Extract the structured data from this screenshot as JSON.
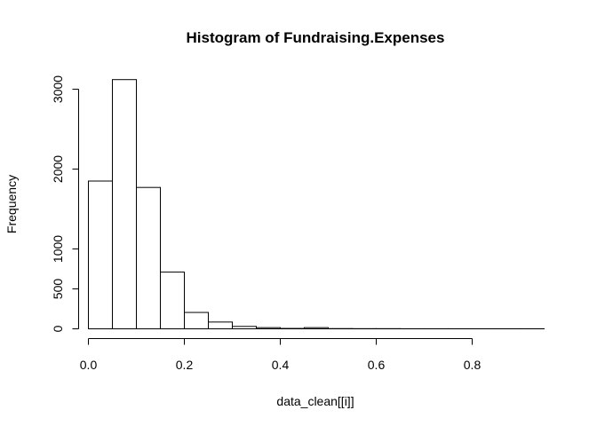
{
  "chart_data": {
    "type": "bar",
    "title": "Histogram of Fundraising.Expenses",
    "xlabel": "data_clean[[i]]",
    "ylabel": "Frequency",
    "bin_width": 0.05,
    "bins": [
      {
        "x0": 0.0,
        "x1": 0.05,
        "count": 1850
      },
      {
        "x0": 0.05,
        "x1": 0.1,
        "count": 3120
      },
      {
        "x0": 0.1,
        "x1": 0.15,
        "count": 1770
      },
      {
        "x0": 0.15,
        "x1": 0.2,
        "count": 710
      },
      {
        "x0": 0.2,
        "x1": 0.25,
        "count": 205
      },
      {
        "x0": 0.25,
        "x1": 0.3,
        "count": 85
      },
      {
        "x0": 0.3,
        "x1": 0.35,
        "count": 30
      },
      {
        "x0": 0.35,
        "x1": 0.4,
        "count": 15
      },
      {
        "x0": 0.4,
        "x1": 0.45,
        "count": 5
      },
      {
        "x0": 0.45,
        "x1": 0.5,
        "count": 15
      },
      {
        "x0": 0.5,
        "x1": 0.55,
        "count": 3
      },
      {
        "x0": 0.55,
        "x1": 0.6,
        "count": 2
      },
      {
        "x0": 0.6,
        "x1": 0.65,
        "count": 2
      },
      {
        "x0": 0.65,
        "x1": 0.7,
        "count": 1
      },
      {
        "x0": 0.7,
        "x1": 0.75,
        "count": 1
      },
      {
        "x0": 0.75,
        "x1": 0.8,
        "count": 1
      },
      {
        "x0": 0.8,
        "x1": 0.85,
        "count": 1
      },
      {
        "x0": 0.85,
        "x1": 0.9,
        "count": 1
      },
      {
        "x0": 0.9,
        "x1": 0.95,
        "count": 1
      }
    ],
    "xlim": [
      0.0,
      0.95
    ],
    "ylim": [
      0,
      3120
    ],
    "x_ticks": [
      0.0,
      0.2,
      0.4,
      0.6,
      0.8
    ],
    "x_tick_labels": [
      "0.0",
      "0.2",
      "0.4",
      "0.6",
      "0.8"
    ],
    "y_ticks": [
      0,
      500,
      1000,
      2000,
      3000
    ],
    "y_tick_labels": [
      "0",
      "500",
      "1000",
      "2000",
      "3000"
    ],
    "grid": false
  }
}
